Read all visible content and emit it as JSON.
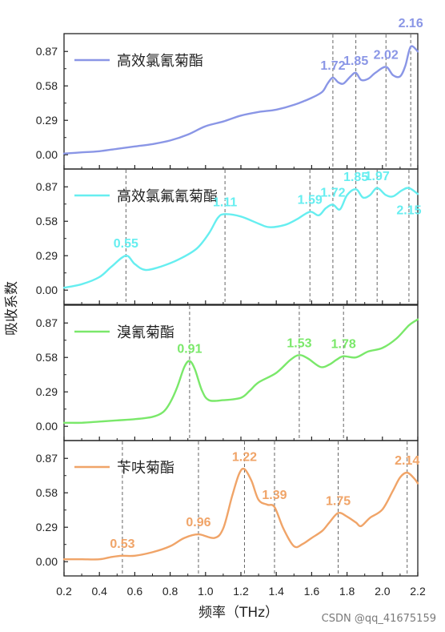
{
  "chart_data": {
    "type": "line",
    "xlabel": "频率（THz）",
    "ylabel": "吸收系数",
    "xlim": [
      0.2,
      2.2
    ],
    "x_ticks": [
      "0.2",
      "0.4",
      "0.6",
      "0.8",
      "1.0",
      "1.2",
      "1.4",
      "1.6",
      "1.8",
      "2.0",
      "2.2"
    ],
    "y_ticks": [
      "0.00",
      "0.29",
      "0.58",
      "0.87"
    ],
    "ylim": [
      -0.12,
      1.02
    ],
    "grid": false,
    "panels": [
      {
        "legend": "高效氯氰菊酯",
        "color": "#8a96e6",
        "peaks": [
          {
            "x": 1.72,
            "label": "1.72"
          },
          {
            "x": 1.85,
            "label": "1.85"
          },
          {
            "x": 2.02,
            "label": "2.02"
          },
          {
            "x": 2.16,
            "label": "2.16"
          }
        ],
        "points": [
          [
            0.2,
            0.01
          ],
          [
            0.3,
            0.02
          ],
          [
            0.4,
            0.03
          ],
          [
            0.5,
            0.05
          ],
          [
            0.6,
            0.07
          ],
          [
            0.7,
            0.09
          ],
          [
            0.8,
            0.12
          ],
          [
            0.9,
            0.17
          ],
          [
            1.0,
            0.24
          ],
          [
            1.1,
            0.28
          ],
          [
            1.2,
            0.33
          ],
          [
            1.3,
            0.36
          ],
          [
            1.4,
            0.38
          ],
          [
            1.5,
            0.42
          ],
          [
            1.6,
            0.48
          ],
          [
            1.66,
            0.53
          ],
          [
            1.69,
            0.6
          ],
          [
            1.72,
            0.65
          ],
          [
            1.75,
            0.61
          ],
          [
            1.78,
            0.6
          ],
          [
            1.82,
            0.66
          ],
          [
            1.85,
            0.69
          ],
          [
            1.88,
            0.63
          ],
          [
            1.92,
            0.64
          ],
          [
            1.96,
            0.69
          ],
          [
            2.02,
            0.74
          ],
          [
            2.06,
            0.67
          ],
          [
            2.1,
            0.66
          ],
          [
            2.13,
            0.75
          ],
          [
            2.16,
            0.91
          ],
          [
            2.2,
            0.87
          ]
        ]
      },
      {
        "legend": "高效氯氟氰菊酯",
        "color": "#66eef0",
        "peaks": [
          {
            "x": 0.55,
            "label": "0.55"
          },
          {
            "x": 1.11,
            "label": "1.11"
          },
          {
            "x": 1.59,
            "label": "1.59"
          },
          {
            "x": 1.72,
            "label": "1.72"
          },
          {
            "x": 1.85,
            "label": "1.85"
          },
          {
            "x": 1.97,
            "label": "1.97"
          },
          {
            "x": 2.15,
            "label": "2.15"
          }
        ],
        "points": [
          [
            0.2,
            0.02
          ],
          [
            0.3,
            0.05
          ],
          [
            0.4,
            0.11
          ],
          [
            0.47,
            0.2
          ],
          [
            0.55,
            0.29
          ],
          [
            0.6,
            0.22
          ],
          [
            0.66,
            0.17
          ],
          [
            0.75,
            0.2
          ],
          [
            0.85,
            0.26
          ],
          [
            0.95,
            0.35
          ],
          [
            1.02,
            0.48
          ],
          [
            1.07,
            0.61
          ],
          [
            1.11,
            0.64
          ],
          [
            1.2,
            0.62
          ],
          [
            1.3,
            0.56
          ],
          [
            1.36,
            0.53
          ],
          [
            1.45,
            0.55
          ],
          [
            1.52,
            0.6
          ],
          [
            1.59,
            0.66
          ],
          [
            1.64,
            0.63
          ],
          [
            1.68,
            0.69
          ],
          [
            1.72,
            0.72
          ],
          [
            1.76,
            0.68
          ],
          [
            1.8,
            0.8
          ],
          [
            1.85,
            0.85
          ],
          [
            1.89,
            0.78
          ],
          [
            1.93,
            0.8
          ],
          [
            1.97,
            0.86
          ],
          [
            2.02,
            0.8
          ],
          [
            2.06,
            0.79
          ],
          [
            2.11,
            0.84
          ],
          [
            2.15,
            0.86
          ],
          [
            2.2,
            0.81
          ]
        ]
      },
      {
        "legend": "溴氰菊酯",
        "color": "#7ae86a",
        "peaks": [
          {
            "x": 0.91,
            "label": "0.91"
          },
          {
            "x": 1.53,
            "label": "1.53"
          },
          {
            "x": 1.78,
            "label": "1.78"
          }
        ],
        "points": [
          [
            0.2,
            0.03
          ],
          [
            0.3,
            0.03
          ],
          [
            0.4,
            0.04
          ],
          [
            0.5,
            0.05
          ],
          [
            0.6,
            0.06
          ],
          [
            0.7,
            0.08
          ],
          [
            0.76,
            0.12
          ],
          [
            0.8,
            0.2
          ],
          [
            0.84,
            0.33
          ],
          [
            0.88,
            0.5
          ],
          [
            0.91,
            0.55
          ],
          [
            0.94,
            0.48
          ],
          [
            0.98,
            0.3
          ],
          [
            1.02,
            0.22
          ],
          [
            1.1,
            0.22
          ],
          [
            1.2,
            0.24
          ],
          [
            1.25,
            0.3
          ],
          [
            1.3,
            0.37
          ],
          [
            1.4,
            0.45
          ],
          [
            1.48,
            0.56
          ],
          [
            1.53,
            0.6
          ],
          [
            1.58,
            0.57
          ],
          [
            1.65,
            0.5
          ],
          [
            1.7,
            0.52
          ],
          [
            1.74,
            0.56
          ],
          [
            1.78,
            0.59
          ],
          [
            1.85,
            0.58
          ],
          [
            1.92,
            0.63
          ],
          [
            2.0,
            0.66
          ],
          [
            2.08,
            0.74
          ],
          [
            2.15,
            0.85
          ],
          [
            2.2,
            0.9
          ]
        ]
      },
      {
        "legend": "苄呋菊酯",
        "color": "#f0a468",
        "peaks": [
          {
            "x": 0.53,
            "label": "0.53"
          },
          {
            "x": 0.96,
            "label": "0.96"
          },
          {
            "x": 1.22,
            "label": "1.22"
          },
          {
            "x": 1.39,
            "label": "1.39"
          },
          {
            "x": 1.75,
            "label": "1.75"
          },
          {
            "x": 2.14,
            "label": "2.14"
          }
        ],
        "points": [
          [
            0.2,
            0.02
          ],
          [
            0.3,
            0.02
          ],
          [
            0.4,
            0.02
          ],
          [
            0.47,
            0.04
          ],
          [
            0.53,
            0.05
          ],
          [
            0.6,
            0.05
          ],
          [
            0.7,
            0.08
          ],
          [
            0.8,
            0.13
          ],
          [
            0.88,
            0.2
          ],
          [
            0.96,
            0.23
          ],
          [
            1.05,
            0.2
          ],
          [
            1.1,
            0.28
          ],
          [
            1.15,
            0.55
          ],
          [
            1.19,
            0.74
          ],
          [
            1.22,
            0.78
          ],
          [
            1.26,
            0.68
          ],
          [
            1.3,
            0.52
          ],
          [
            1.35,
            0.48
          ],
          [
            1.39,
            0.46
          ],
          [
            1.44,
            0.28
          ],
          [
            1.5,
            0.13
          ],
          [
            1.55,
            0.15
          ],
          [
            1.6,
            0.2
          ],
          [
            1.66,
            0.26
          ],
          [
            1.7,
            0.33
          ],
          [
            1.75,
            0.41
          ],
          [
            1.8,
            0.38
          ],
          [
            1.85,
            0.33
          ],
          [
            1.88,
            0.3
          ],
          [
            1.93,
            0.37
          ],
          [
            2.0,
            0.44
          ],
          [
            2.06,
            0.6
          ],
          [
            2.1,
            0.71
          ],
          [
            2.14,
            0.75
          ],
          [
            2.18,
            0.7
          ],
          [
            2.2,
            0.66
          ]
        ]
      }
    ]
  },
  "watermark": "CSDN @qq_41675159"
}
